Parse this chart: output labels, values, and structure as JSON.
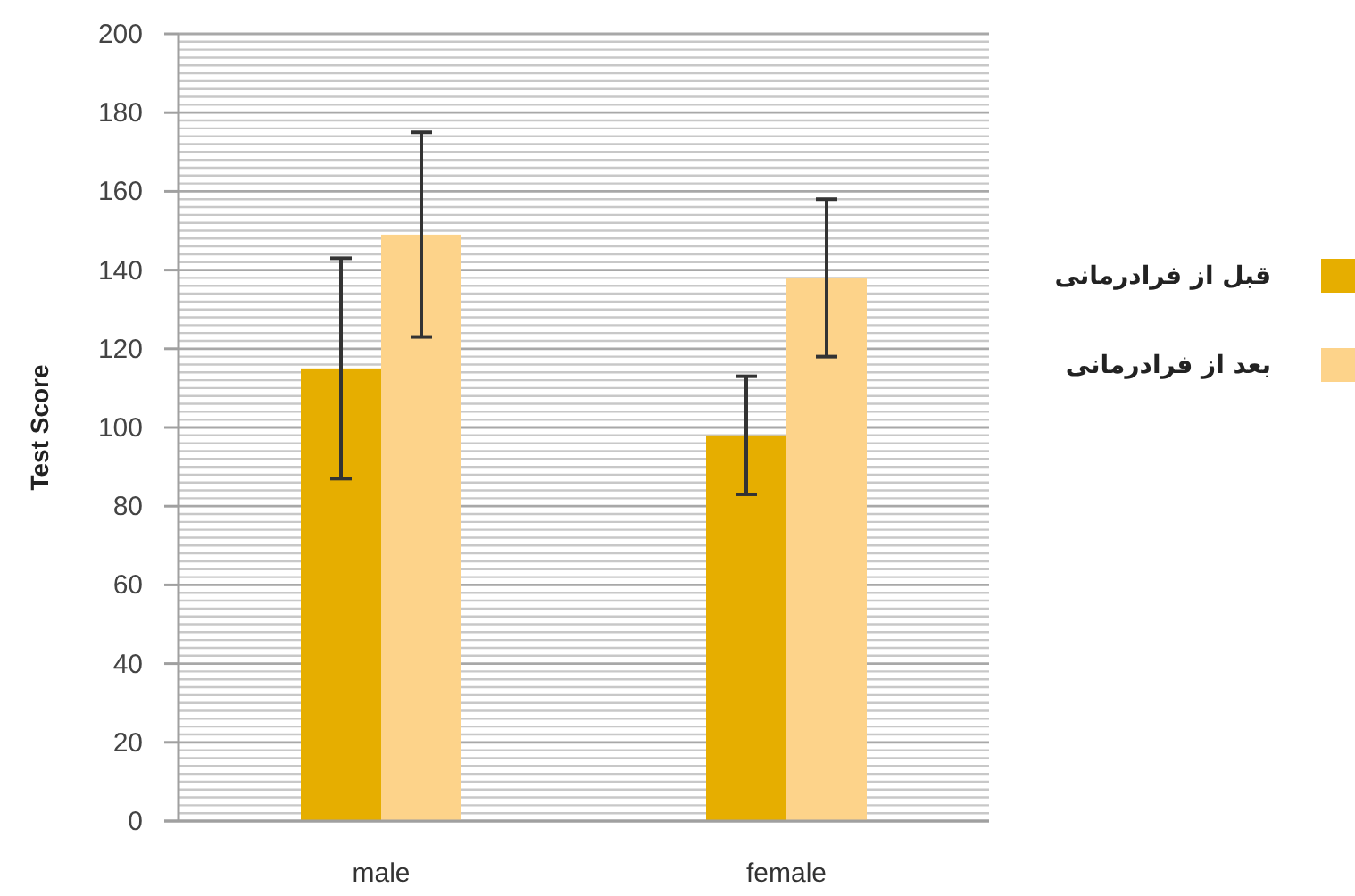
{
  "chart_data": {
    "type": "bar",
    "ylabel": "Test Score",
    "categories": [
      "male",
      "female"
    ],
    "series": [
      {
        "name": "قبل از فرادرمانی",
        "color": "#e6ae00",
        "values": [
          115,
          98
        ],
        "errors": [
          28,
          15
        ]
      },
      {
        "name": "بعد از فرادرمانی",
        "color": "#fdd38a",
        "values": [
          149,
          138
        ],
        "errors": [
          26,
          20
        ]
      }
    ],
    "ylim": [
      0,
      200
    ],
    "yticks": [
      0,
      20,
      40,
      60,
      80,
      100,
      120,
      140,
      160,
      180,
      200
    ],
    "grid": "y",
    "legend": "right"
  }
}
